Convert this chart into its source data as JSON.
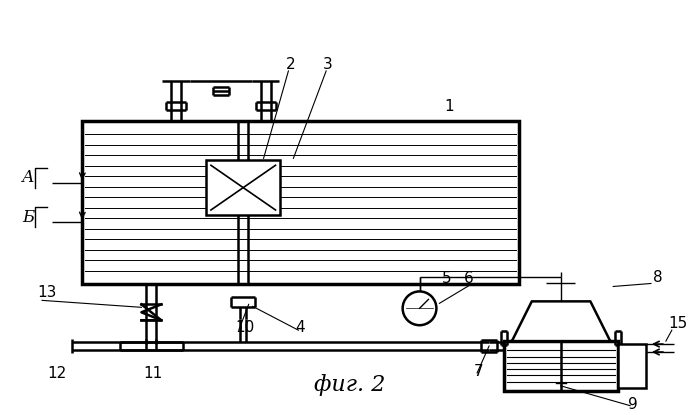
{
  "bg_color": "#ffffff",
  "line_color": "#000000",
  "fig_width": 7.0,
  "fig_height": 4.15,
  "caption": "фиг. 2"
}
